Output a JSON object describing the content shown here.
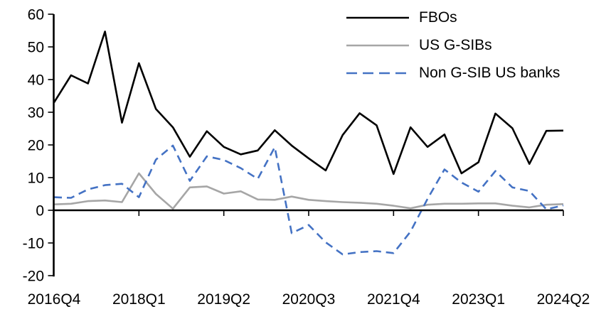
{
  "chart_data": {
    "type": "line",
    "title": "",
    "xlabel": "",
    "ylabel": "",
    "grid": false,
    "legend_position": "top-right",
    "ylim": [
      -20,
      60
    ],
    "y_ticks": [
      60,
      50,
      40,
      30,
      20,
      10,
      0,
      -10,
      -20
    ],
    "x_tick_labels": [
      "2016Q4",
      "2018Q1",
      "2019Q2",
      "2020Q3",
      "2021Q4",
      "2023Q1",
      "2024Q2"
    ],
    "x_tick_indices": [
      0,
      5,
      10,
      15,
      20,
      25,
      30
    ],
    "categories": [
      "2016Q4",
      "2017Q1",
      "2017Q2",
      "2017Q3",
      "2017Q4",
      "2018Q1",
      "2018Q2",
      "2018Q3",
      "2018Q4",
      "2019Q1",
      "2019Q2",
      "2019Q3",
      "2019Q4",
      "2020Q1",
      "2020Q2",
      "2020Q3",
      "2020Q4",
      "2021Q1",
      "2021Q2",
      "2021Q3",
      "2021Q4",
      "2022Q1",
      "2022Q2",
      "2022Q3",
      "2022Q4",
      "2023Q1",
      "2023Q2",
      "2023Q3",
      "2023Q4",
      "2024Q1",
      "2024Q2"
    ],
    "axis_color": "#000000",
    "series": [
      {
        "name": "FBOs",
        "color": "#000000",
        "style": "solid",
        "values": [
          33,
          41.3,
          38.8,
          54.7,
          26.8,
          45,
          31,
          25.4,
          16.4,
          24.2,
          19.4,
          17.1,
          18.3,
          24.5,
          19.8,
          15.9,
          12.2,
          23,
          29.7,
          26,
          11.1,
          25.4,
          19.4,
          23.2,
          11.3,
          14.7,
          29.6,
          25.1,
          14.2,
          24.3,
          24.4
        ]
      },
      {
        "name": "US G-SIBs",
        "color": "#A6A6A6",
        "style": "solid",
        "values": [
          1.8,
          2,
          2.8,
          3,
          2.5,
          11.3,
          5,
          0.5,
          7,
          7.3,
          5.1,
          5.8,
          3.3,
          3.2,
          4.2,
          3.2,
          2.8,
          2.5,
          2.3,
          2,
          1.4,
          0.6,
          1.7,
          2,
          2,
          2.1,
          2.1,
          1.4,
          0.9,
          1.7,
          1.9
        ]
      },
      {
        "name": "Non G-SIB US banks",
        "color": "#4472C4",
        "style": "dashed",
        "values": [
          4,
          3.8,
          6.4,
          7.7,
          8.1,
          4,
          15.5,
          19.8,
          9,
          16.5,
          15.4,
          12.9,
          9.6,
          19.3,
          -7,
          -4.5,
          -9.8,
          -13.5,
          -12.8,
          -12.5,
          -13.1,
          -6.5,
          3.5,
          12.5,
          8.5,
          5.7,
          12,
          7,
          5.9,
          0.3,
          1.5
        ]
      }
    ]
  }
}
